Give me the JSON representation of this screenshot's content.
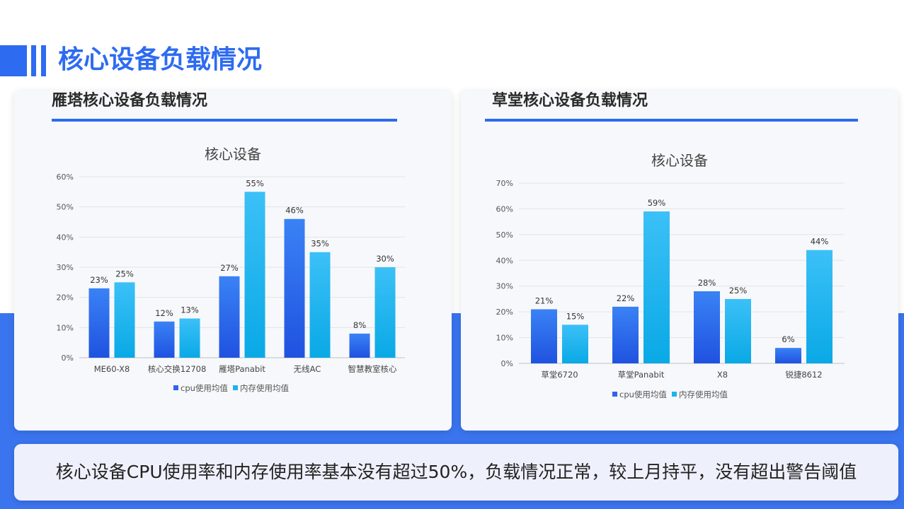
{
  "page": {
    "title": "核心设备负载情况",
    "summary": "核心设备CPU使用率和内存使用率基本没有超过50%，负载情况正常，较上月持平，没有超出警告阈值"
  },
  "colors": {
    "accent": "#2d6bf0",
    "cpu_series": "#2f65ec",
    "mem_series": "#1cb4ef",
    "background_band": "#3a74ee"
  },
  "panels": [
    {
      "title": "雁塔核心设备负载情况"
    },
    {
      "title": "草堂核心设备负载情况"
    }
  ],
  "chart_data": [
    {
      "type": "bar",
      "title": "核心设备",
      "categories": [
        "ME60-X8",
        "核心交换12708",
        "雁塔Panabit",
        "无线AC",
        "智慧教室核心"
      ],
      "series": [
        {
          "name": "cpu使用均值",
          "values": [
            23,
            12,
            27,
            46,
            8
          ]
        },
        {
          "name": "内存使用均值",
          "values": [
            25,
            13,
            55,
            35,
            30
          ]
        }
      ],
      "yticks": [
        "0%",
        "10%",
        "20%",
        "30%",
        "40%",
        "50%",
        "60%"
      ],
      "ylim": [
        0,
        60
      ],
      "value_suffix": "%",
      "legend": "bottom",
      "grid": true
    },
    {
      "type": "bar",
      "title": "核心设备",
      "categories": [
        "草堂6720",
        "草堂Panabit",
        "X8",
        "锐捷8612"
      ],
      "series": [
        {
          "name": "cpu使用均值",
          "values": [
            21,
            22,
            28,
            6
          ]
        },
        {
          "name": "内存使用均值",
          "values": [
            15,
            59,
            25,
            44
          ]
        }
      ],
      "yticks": [
        "0%",
        "10%",
        "20%",
        "30%",
        "40%",
        "50%",
        "60%",
        "70%"
      ],
      "ylim": [
        0,
        70
      ],
      "value_suffix": "%",
      "legend": "bottom",
      "grid": true
    }
  ]
}
